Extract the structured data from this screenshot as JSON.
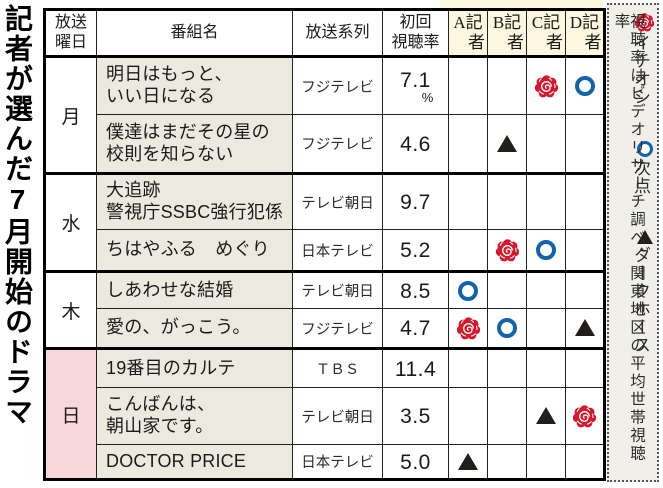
{
  "page_title_vertical": "記者が選んだ7月開始のドラマ",
  "table": {
    "headers": {
      "day": [
        "放送",
        "曜日"
      ],
      "name": "番組名",
      "network": "放送系列",
      "rating": [
        "初回",
        "視聴率"
      ],
      "reporters": [
        [
          "A記",
          "　者"
        ],
        [
          "B記",
          "　者"
        ],
        [
          "C記",
          "　者"
        ],
        [
          "D記",
          "　者"
        ]
      ]
    },
    "rows": [
      {
        "day": "月",
        "name": [
          "明日はもっと、",
          "いい日になる"
        ],
        "network": "フジテレビ",
        "rating": "7.1",
        "unit": "%",
        "marks": [
          "",
          "",
          "rose",
          "circle"
        ]
      },
      {
        "name": [
          "僕達はまだその星の",
          "校則を知らない"
        ],
        "network": "フジテレビ",
        "rating": "4.6",
        "unit": "",
        "marks": [
          "",
          "triangle",
          "",
          ""
        ]
      },
      {
        "day": "水",
        "name": [
          "大追跡",
          "警視庁SSBC強行犯係"
        ],
        "network": "テレビ朝日",
        "rating": "9.7",
        "unit": "",
        "marks": [
          "",
          "",
          "",
          ""
        ]
      },
      {
        "name": [
          "ちはやふる　めぐり"
        ],
        "network": "日本テレビ",
        "rating": "5.2",
        "unit": "",
        "marks": [
          "",
          "rose",
          "circle",
          ""
        ]
      },
      {
        "day": "木",
        "name": [
          "しあわせな結婚"
        ],
        "network": "テレビ朝日",
        "rating": "8.5",
        "unit": "",
        "marks": [
          "circle",
          "",
          "",
          ""
        ]
      },
      {
        "name": [
          "愛の、がっこう。"
        ],
        "network": "フジテレビ",
        "rating": "4.7",
        "unit": "",
        "marks": [
          "rose",
          "circle",
          "",
          "triangle"
        ]
      },
      {
        "day": "日",
        "name": [
          "19番目のカルテ"
        ],
        "network": "ＴＢＳ",
        "rating": "11.4",
        "unit": "",
        "marks": [
          "",
          "",
          "",
          ""
        ]
      },
      {
        "name": [
          "こんばんは、",
          "朝山家です。"
        ],
        "network": "テレビ朝日",
        "rating": "3.5",
        "unit": "",
        "marks": [
          "",
          "",
          "triangle",
          "rose"
        ]
      },
      {
        "name": [
          "DOCTOR PRICE"
        ],
        "network": "日本テレビ",
        "rating": "5.0",
        "unit": "",
        "marks": [
          "triangle",
          "",
          "",
          ""
        ]
      }
    ]
  },
  "legend": {
    "items": [
      {
        "icon": "rose",
        "label": "イチオシ"
      },
      {
        "icon": "circle",
        "label": "次点"
      },
      {
        "icon": "triangle",
        "label": "ダークホース"
      }
    ],
    "note": "視聴率はビデオリサーチ調べ、関東地区の平均世帯視聴率"
  },
  "colors": {
    "rose_red": "#d5182d",
    "circle_blue": "#1263ad",
    "triangle_black": "#221e19",
    "program_cell_beige": "#ece9df",
    "reporter_header_cream": "#fcf7de",
    "sunday_pink": "#f9d8dd",
    "legend_bg": "#f0efe9"
  }
}
